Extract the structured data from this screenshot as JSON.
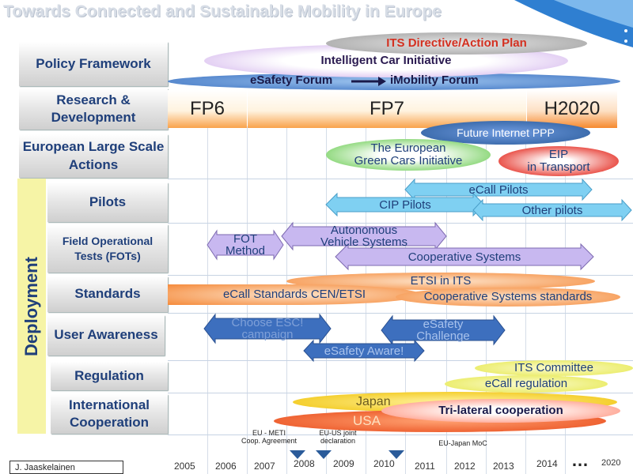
{
  "title": "Towards Connected and Sustainable Mobility in Europe",
  "row_labels": {
    "policy": "Policy Framework",
    "research": "Research & Development",
    "large_scale": "European Large Scale Actions",
    "pilots": "Pilots",
    "fots": "Field Operational Tests (FOTs)",
    "standards": "Standards",
    "user_awareness": "User Awareness",
    "regulation": "Regulation",
    "international": "International Cooperation",
    "deployment": "Deployment"
  },
  "policy": {
    "its_directive": "ITS Directive/Action Plan",
    "intelligent_car": "Intelligent Car Initiative",
    "esafety_forum": "eSafety Forum",
    "imobility_forum": "iMobility Forum"
  },
  "research": {
    "fp6": "FP6",
    "fp7": "FP7",
    "h2020": "H2020"
  },
  "large_scale": {
    "future_internet": "Future Internet PPP",
    "green_cars_1": "The European",
    "green_cars_2": "Green Cars Initiative",
    "eip_1": "EIP",
    "eip_2": "in Transport"
  },
  "pilots": {
    "ecall": "eCall Pilots",
    "cip": "CIP Pilots",
    "other": "Other pilots"
  },
  "fots": {
    "fot_method_1": "FOT",
    "fot_method_2": "Method",
    "autonomous_1": "Autonomous",
    "autonomous_2": "Vehicle Systems",
    "cooperative": "Cooperative Systems"
  },
  "standards": {
    "etsi": "ETSI in ITS",
    "ecall_std": "eCall Standards CEN/ETSI",
    "coop_std": "Cooperative Systems standards"
  },
  "user_awareness": {
    "esc_1": "Choose ESC!",
    "esc_2": "campaign",
    "esafety_challenge_1": "eSafety",
    "esafety_challenge_2": "Challenge",
    "esafety_aware": "eSafety Aware!"
  },
  "regulation": {
    "its_committee": "ITS Committee",
    "ecall_reg": "eCall regulation"
  },
  "international": {
    "japan": "Japan",
    "usa": "USA",
    "trilateral": "Tri-lateral cooperation"
  },
  "timeline": {
    "years": [
      "2005",
      "2006",
      "2007",
      "2008",
      "2009",
      "2010",
      "2011",
      "2012",
      "2013",
      "2014",
      "…",
      "2020"
    ],
    "notes": {
      "eu_meti_1": "EU - METI",
      "eu_meti_2": "Coop. Agreement",
      "eu_us_1": "EU-US  joint",
      "eu_us_2": "declaration",
      "eu_japan": "EU-Japan  MoC"
    }
  },
  "author": "J. Jaaskelainen",
  "colors": {
    "label_text": "#1f3f7a",
    "fp_orange": "#f9a24b",
    "deployment_yellow": "#f6f4a6",
    "oval_violet": "#c9a3e8",
    "oval_blue": "#3a70c0",
    "oval_green": "#7fd36a",
    "oval_red": "#e8473e",
    "oval_orange": "#f58a3a",
    "oval_yellow": "#eef06a",
    "arrow_lightblue": "#7fd0f2",
    "arrow_lavender": "#c8b8f0",
    "arrow_darkblue": "#3d6fbe"
  }
}
